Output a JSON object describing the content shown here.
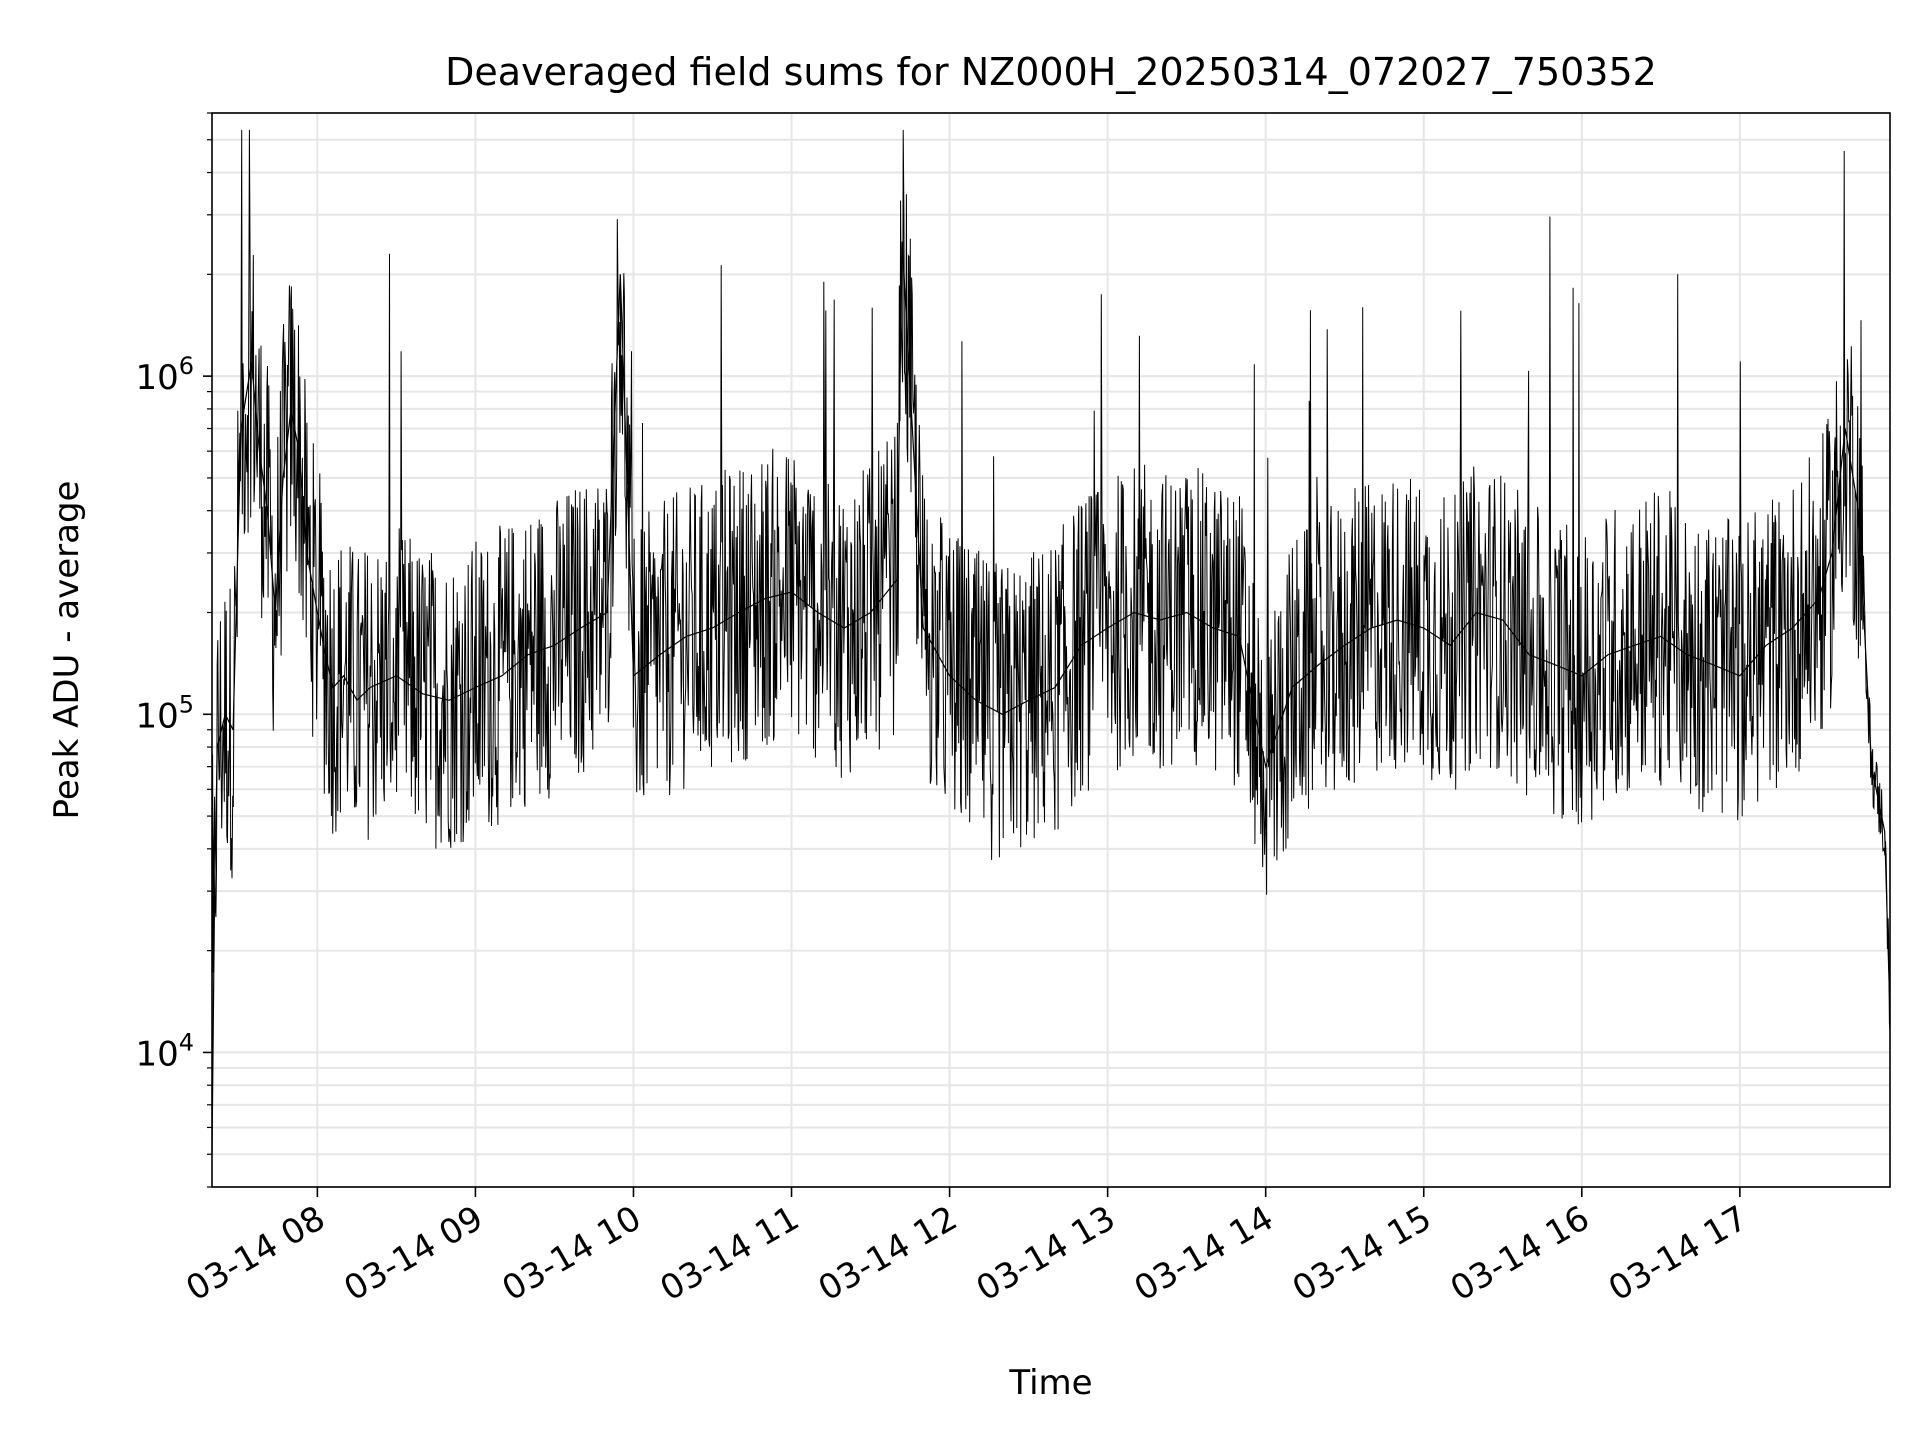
{
  "chart_data": {
    "type": "line",
    "title": "Deaveraged field sums for NZ000H_20250314_072027_750352",
    "xlabel": "Time",
    "ylabel": "Peak ADU - average",
    "yscale": "log",
    "ylim": [
      4000,
      6000000
    ],
    "xlim": [
      "03-14 07:20",
      "03-14 17:57"
    ],
    "grid": true,
    "legend": "none",
    "x_ticks": [
      "03-14 08",
      "03-14 09",
      "03-14 10",
      "03-14 11",
      "03-14 12",
      "03-14 13",
      "03-14 14",
      "03-14 15",
      "03-14 16",
      "03-14 17"
    ],
    "y_ticks": [
      {
        "base": "10",
        "exp": "4",
        "value": 10000
      },
      {
        "base": "10",
        "exp": "5",
        "value": 100000
      },
      {
        "base": "10",
        "exp": "6",
        "value": 1000000
      }
    ],
    "series_color": "#000000",
    "grid_color": "#e6e6e6",
    "series": [
      {
        "x": [
          "03-14 07:20",
          "03-14 07:21",
          "03-14 07:22",
          "03-14 07:25",
          "03-14 07:28",
          "03-14 07:31",
          "03-14 07:35",
          "03-14 07:38",
          "03-14 07:41",
          "03-14 07:44",
          "03-14 07:47",
          "03-14 07:50",
          "03-14 07:53",
          "03-14 07:56",
          "03-14 08:00",
          "03-14 08:03",
          "03-14 08:06",
          "03-14 08:10",
          "03-14 08:15",
          "03-14 08:20",
          "03-14 08:30",
          "03-14 08:40",
          "03-14 08:50",
          "03-14 09:00",
          "03-14 09:10",
          "03-14 09:20",
          "03-14 09:30",
          "03-14 09:40",
          "03-14 09:50",
          "03-14 09:55",
          "03-14 10:00",
          "03-14 10:10",
          "03-14 10:20",
          "03-14 10:30",
          "03-14 10:40",
          "03-14 10:50",
          "03-14 11:00",
          "03-14 11:10",
          "03-14 11:20",
          "03-14 11:30",
          "03-14 11:40",
          "03-14 11:42",
          "03-14 11:50",
          "03-14 12:00",
          "03-14 12:10",
          "03-14 12:20",
          "03-14 12:30",
          "03-14 12:40",
          "03-14 12:50",
          "03-14 13:00",
          "03-14 13:10",
          "03-14 13:20",
          "03-14 13:30",
          "03-14 13:40",
          "03-14 13:50",
          "03-14 14:00",
          "03-14 14:10",
          "03-14 14:20",
          "03-14 14:30",
          "03-14 14:40",
          "03-14 14:50",
          "03-14 15:00",
          "03-14 15:10",
          "03-14 15:20",
          "03-14 15:30",
          "03-14 15:40",
          "03-14 15:50",
          "03-14 16:00",
          "03-14 16:10",
          "03-14 16:20",
          "03-14 16:30",
          "03-14 16:40",
          "03-14 16:50",
          "03-14 17:00",
          "03-14 17:10",
          "03-14 17:20",
          "03-14 17:30",
          "03-14 17:35",
          "03-14 17:40",
          "03-14 17:45",
          "03-14 17:50",
          "03-14 17:55",
          "03-14 17:57"
        ],
        "y": [
          5000,
          30000,
          80000,
          100000,
          90000,
          700000,
          1100000,
          600000,
          400000,
          200000,
          500000,
          800000,
          600000,
          300000,
          200000,
          150000,
          120000,
          130000,
          110000,
          120000,
          130000,
          115000,
          110000,
          120000,
          130000,
          150000,
          160000,
          180000,
          200000,
          2000000,
          130000,
          150000,
          170000,
          180000,
          200000,
          220000,
          230000,
          200000,
          180000,
          200000,
          250000,
          2500000,
          180000,
          130000,
          110000,
          100000,
          110000,
          120000,
          160000,
          180000,
          200000,
          190000,
          200000,
          180000,
          170000,
          70000,
          120000,
          140000,
          160000,
          180000,
          190000,
          180000,
          160000,
          200000,
          190000,
          150000,
          140000,
          130000,
          150000,
          160000,
          170000,
          150000,
          140000,
          130000,
          160000,
          180000,
          220000,
          300000,
          700000,
          400000,
          70000,
          45000,
          13000
        ]
      }
    ]
  }
}
